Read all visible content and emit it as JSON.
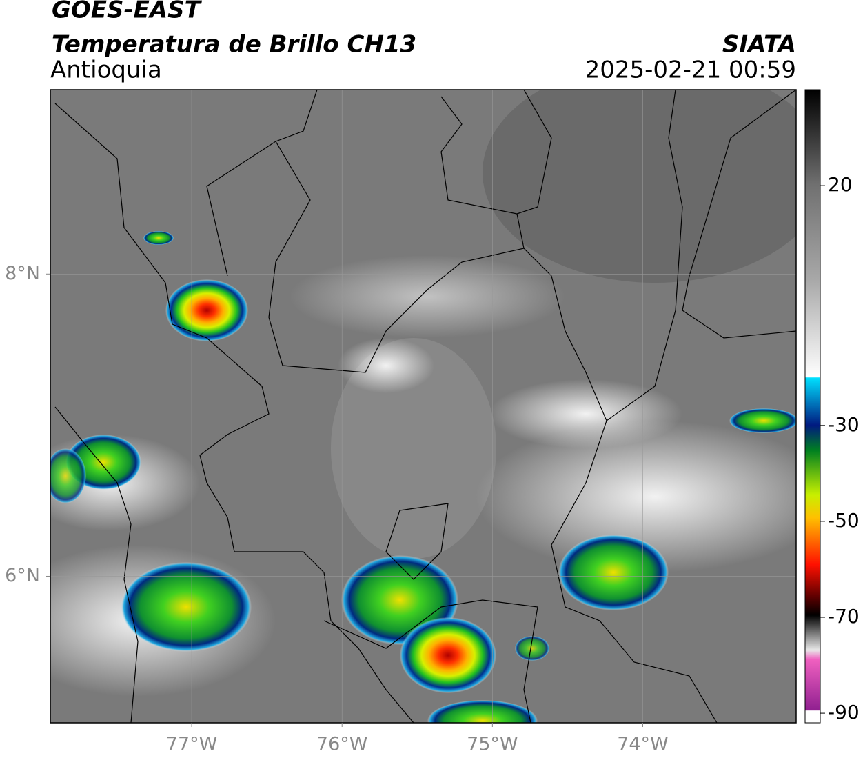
{
  "header": {
    "line1": "GOES-EAST",
    "line2": "Temperatura de Brillo CH13",
    "region": "Antioquia",
    "source": "SIATA",
    "datetime": "2025-02-21 00:59"
  },
  "map": {
    "xlim": [
      -77.94,
      -72.98
    ],
    "ylim": [
      5.03,
      9.22
    ],
    "xticks": [
      {
        "value": -77,
        "label": "77°W"
      },
      {
        "value": -76,
        "label": "76°W"
      },
      {
        "value": -75,
        "label": "75°W"
      },
      {
        "value": -74,
        "label": "74°W"
      }
    ],
    "yticks": [
      {
        "value": 8,
        "label": "8°N"
      },
      {
        "value": 6,
        "label": "6°N"
      }
    ],
    "grid": true
  },
  "colorbar": {
    "lim": [
      -92,
      40
    ],
    "ticks": [
      20,
      -30,
      -50,
      -70,
      -90
    ]
  }
}
